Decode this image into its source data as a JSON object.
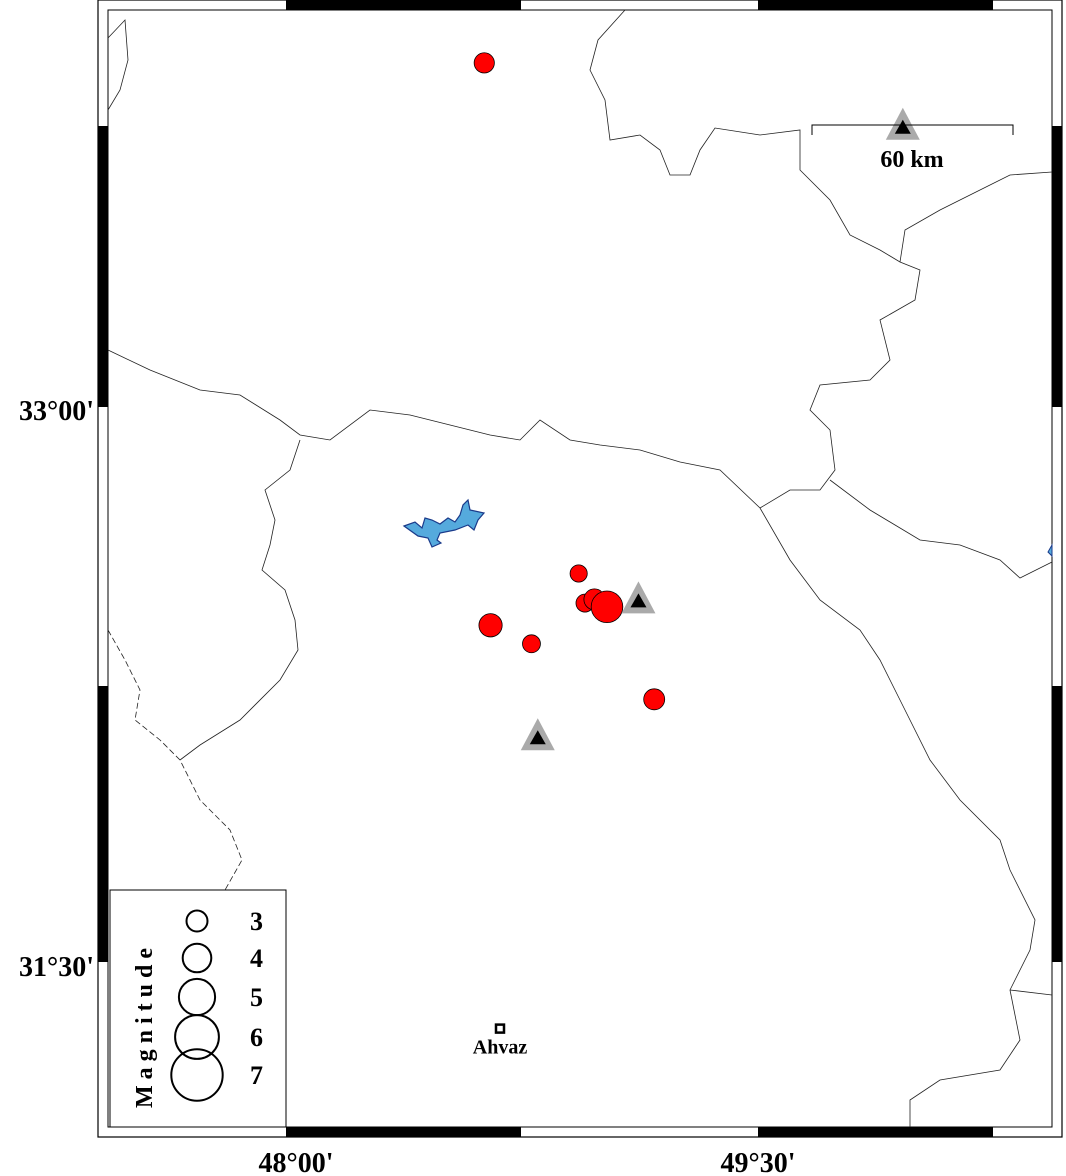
{
  "map": {
    "axes": {
      "lon_ticks": [
        {
          "value": 48.0,
          "label": "48°00'"
        },
        {
          "value": 49.5,
          "label": "49°30'"
        }
      ],
      "lat_ticks": [
        {
          "value": 33.0,
          "label": "33°00'"
        },
        {
          "value": 31.5,
          "label": "31°30'"
        }
      ]
    },
    "scale_bar": {
      "label": "60 km"
    },
    "legend": {
      "title": "Magnitude",
      "entries": [
        {
          "mag": 3,
          "label": "3"
        },
        {
          "mag": 4,
          "label": "4"
        },
        {
          "mag": 5,
          "label": "5"
        },
        {
          "mag": 6,
          "label": "6"
        },
        {
          "mag": 7,
          "label": "7"
        }
      ]
    },
    "colors": {
      "event": "#ff0000",
      "station_outer": "#aaaaaa",
      "station_inner": "#000000",
      "water": "#55aadd"
    },
    "events": [
      {
        "lon": 48.63,
        "lat": 33.93,
        "mag": 2.9
      },
      {
        "lon": 48.93,
        "lat": 32.55,
        "mag": 2.5
      },
      {
        "lon": 48.95,
        "lat": 32.47,
        "mag": 2.6
      },
      {
        "lon": 48.98,
        "lat": 32.48,
        "mag": 3.0
      },
      {
        "lon": 49.02,
        "lat": 32.46,
        "mag": 4.4
      },
      {
        "lon": 48.65,
        "lat": 32.41,
        "mag": 3.3
      },
      {
        "lon": 48.78,
        "lat": 32.36,
        "mag": 2.6
      },
      {
        "lon": 49.17,
        "lat": 32.21,
        "mag": 3.0
      }
    ],
    "stations": [
      {
        "lon": 49.12,
        "lat": 32.48
      },
      {
        "lon": 48.8,
        "lat": 32.11
      },
      {
        "lon": 49.96,
        "lat": 33.76
      }
    ],
    "cities": [
      {
        "name": "Ahvaz",
        "lon": 48.68,
        "lat": 31.32
      }
    ]
  }
}
